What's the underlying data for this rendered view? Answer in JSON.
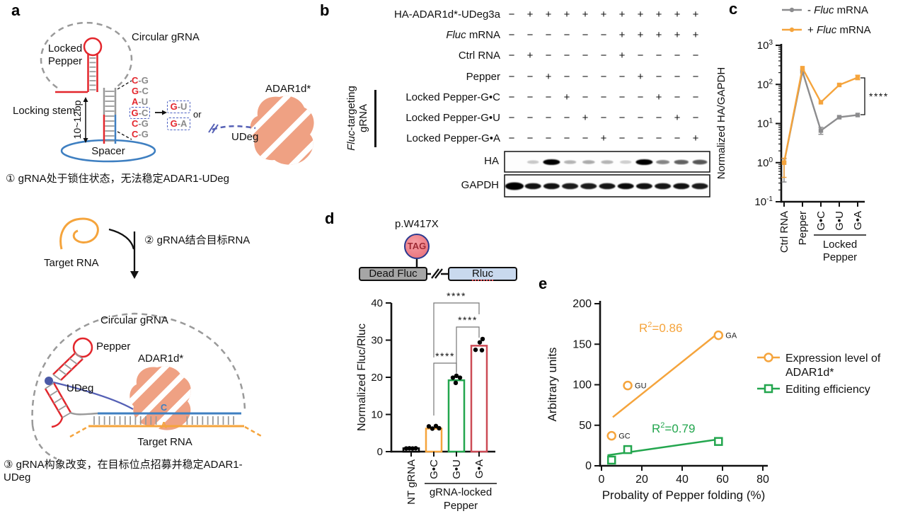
{
  "panels": {
    "a": "a",
    "b": "b",
    "c": "c",
    "d": "d",
    "e": "e"
  },
  "colors": {
    "orange": "#F5A43C",
    "green": "#23A64E",
    "red_bar": "#CC4A55",
    "gray_series": "#8C8C8E",
    "pepper_red": "#E3262C",
    "blue": "#3E7FC1",
    "udeg_blue": "#5560B5",
    "salmon": "#EFA183",
    "base_red": "#E3262C",
    "base_gray": "#8A8A8A"
  },
  "panel_a": {
    "top": {
      "circular_grna": "Circular gRNA",
      "locked_line1": "Locked",
      "locked_line2": "Pepper",
      "locking_stem": "Locking stem",
      "bp_range": "10~12bp",
      "spacer": "Spacer",
      "base_pairs": [
        {
          "l": "C",
          "r": "G",
          "boxed": false
        },
        {
          "l": "G",
          "r": "C",
          "boxed": false
        },
        {
          "l": "A",
          "r": "U",
          "boxed": false
        },
        {
          "l": "G",
          "r": "C",
          "boxed": true
        },
        {
          "l": "C",
          "r": "G",
          "boxed": false
        },
        {
          "l": "C",
          "r": "G",
          "boxed": false
        }
      ],
      "mutants": [
        {
          "l": "G",
          "r": "U"
        },
        {
          "l": "G",
          "r": "A"
        }
      ],
      "or_label": "or",
      "adar_label": "ADAR1d*",
      "udeg_label": "UDeg"
    },
    "step1": "① gRNA处于锁住状态，无法稳定ADAR1-UDeg",
    "target_rna": "Target RNA",
    "step2": "② gRNA结合目标RNA",
    "step3_line1": "③ gRNA构象改变，在目标位点招募并稳定ADAR1-",
    "step3_line2": "UDeg",
    "bottom": {
      "circular_grna": "Circular gRNA",
      "pepper": "Pepper",
      "adar": "ADAR1d*",
      "udeg": "UDeg",
      "c_base": "C",
      "a_base": "A",
      "target_rna": "Target RNA"
    }
  },
  "panel_b": {
    "rows": [
      {
        "label": "HA-ADAR1d*-UDeg3a",
        "symbols": [
          "−",
          "+",
          "+",
          "+",
          "+",
          "+",
          "+",
          "+",
          "+",
          "+",
          "+"
        ]
      },
      {
        "label_italic": "Fluc",
        "label_rest": " mRNA",
        "symbols": [
          "−",
          "−",
          "−",
          "−",
          "−",
          "−",
          "+",
          "+",
          "+",
          "+",
          "+"
        ]
      },
      {
        "label": "Ctrl RNA",
        "symbols": [
          "−",
          "+",
          "−",
          "−",
          "−",
          "−",
          "+",
          "−",
          "−",
          "−",
          "−"
        ]
      },
      {
        "label": "Pepper",
        "symbols": [
          "−",
          "−",
          "+",
          "−",
          "−",
          "−",
          "−",
          "+",
          "−",
          "−",
          "−"
        ]
      },
      {
        "label": "Locked Pepper-G•C",
        "symbols": [
          "−",
          "−",
          "−",
          "+",
          "−",
          "−",
          "−",
          "−",
          "+",
          "−",
          "−"
        ]
      },
      {
        "label": "Locked Pepper-G•U",
        "symbols": [
          "−",
          "−",
          "−",
          "−",
          "+",
          "−",
          "−",
          "−",
          "−",
          "+",
          "−"
        ]
      },
      {
        "label": "Locked Pepper-G•A",
        "symbols": [
          "−",
          "−",
          "−",
          "−",
          "−",
          "+",
          "−",
          "−",
          "−",
          "−",
          "+"
        ]
      }
    ],
    "bracket": {
      "line1_italic": "Fluc",
      "line1_rest": "-targeting",
      "line2": "gRNA"
    },
    "blots": [
      {
        "label": "HA",
        "bands": [
          0,
          0.07,
          1,
          0.16,
          0.2,
          0.16,
          0.04,
          1,
          0.38,
          0.55,
          0.6
        ]
      },
      {
        "label": "GAPDH",
        "bands": [
          1,
          0.92,
          0.92,
          0.88,
          0.88,
          0.9,
          0.95,
          0.92,
          0.9,
          0.92,
          0.88
        ]
      }
    ]
  },
  "panel_d_diagram": {
    "mutation": "p.W417X",
    "codon": "TAG",
    "left_box": "Dead Fluc",
    "right_box": "Rluc"
  },
  "chart_data": [
    {
      "id": "c",
      "type": "line",
      "y_scale": "log",
      "ylabel": "Normalized HA/GAPDH",
      "ylim_exponents": [
        -1,
        3
      ],
      "y_tick_exponents": [
        -1,
        0,
        1,
        2,
        3
      ],
      "categories": [
        "Ctrl RNA",
        "Pepper",
        "G•C",
        "G•U",
        "G•A"
      ],
      "group_label": {
        "line1": "Locked",
        "line2": "Pepper",
        "span_categories": [
          "G•C",
          "G•U",
          "G•A"
        ]
      },
      "legend_position": "top-right",
      "series": [
        {
          "name_pre": "- ",
          "name_italic": "Fluc",
          "name_post": " mRNA",
          "color": "#8C8C8E",
          "values": [
            1.0,
            215,
            6.6,
            14.5,
            16.5
          ],
          "err": [
            [
              0.32,
              1.25
            ],
            null,
            [
              5.3,
              8.0
            ],
            null,
            null
          ]
        },
        {
          "name_pre": "+ ",
          "name_italic": "Fluc",
          "name_post": " mRNA",
          "color": "#F5A43C",
          "values": [
            1.0,
            260,
            35,
            97,
            150
          ],
          "err": [
            [
              0.42,
              1.3
            ],
            null,
            null,
            null,
            [
              132,
              172
            ]
          ]
        }
      ],
      "significance": {
        "label": "****",
        "between": [
          "G•A - Fluc mRNA",
          "G•A + Fluc mRNA"
        ]
      }
    },
    {
      "id": "d",
      "type": "bar",
      "ylabel": "Normalized Fluc/Rluc",
      "ylim": [
        0,
        40
      ],
      "y_ticks": [
        0,
        10,
        20,
        30,
        40
      ],
      "categories": [
        "NT gRNA",
        "G•C",
        "G•U",
        "G•A"
      ],
      "group_label": {
        "line1": "gRNA-locked",
        "line2": "Pepper",
        "span_categories": [
          "G•C",
          "G•U",
          "G•A"
        ]
      },
      "values": [
        0.9,
        6.2,
        19.2,
        28.5
      ],
      "bar_colors": [
        "#000000",
        "#F5A43C",
        "#23A64E",
        "#CC4A55"
      ],
      "points": [
        [
          [
            -7,
            0.85
          ],
          [
            -2.5,
            0.9
          ],
          [
            2,
            0.85
          ],
          [
            6.5,
            0.9
          ]
        ],
        [
          [
            -7,
            6.8
          ],
          [
            -2,
            6.2
          ],
          [
            3,
            6.9
          ],
          [
            7.5,
            6.3
          ]
        ],
        [
          [
            -5,
            19.9
          ],
          [
            0,
            20.4
          ],
          [
            5,
            19.9
          ],
          [
            -1,
            18.5
          ]
        ],
        [
          [
            -5,
            27.4
          ],
          [
            4,
            27.3
          ],
          [
            1,
            29.4
          ],
          [
            5,
            30.3
          ]
        ]
      ],
      "significance": [
        {
          "pair": [
            "G•C",
            "G•U"
          ],
          "label": "****"
        },
        {
          "pair": [
            "G•U",
            "G•A"
          ],
          "label": "****"
        },
        {
          "pair": [
            "G•C",
            "G•A"
          ],
          "label": "****"
        }
      ]
    },
    {
      "id": "e",
      "type": "scatter",
      "xlabel": "Probality of Pepper folding (%)",
      "ylabel": "Arbitrary units",
      "xlim": [
        0,
        80
      ],
      "ylim": [
        0,
        200
      ],
      "x_ticks": [
        0,
        20,
        40,
        60,
        80
      ],
      "y_ticks": [
        0,
        50,
        100,
        150,
        200
      ],
      "series": [
        {
          "name_line1": "Expression level of",
          "name_line2": "ADAR1d*",
          "color": "#F5A43C",
          "marker": "circle",
          "points": [
            [
              5,
              37
            ],
            [
              13,
              99
            ],
            [
              58,
              161
            ]
          ],
          "point_labels": [
            "GC",
            "GU",
            "GA"
          ],
          "fit_line": {
            "x1": 5.6,
            "y1": 60,
            "x2": 57,
            "y2": 162
          },
          "r2": "0.86"
        },
        {
          "name_line1": "Editing efficiency",
          "name_line2": "",
          "color": "#23A64E",
          "marker": "square",
          "points": [
            [
              5,
              7
            ],
            [
              13,
              20
            ],
            [
              58,
              30
            ]
          ],
          "point_labels": [],
          "fit_line": {
            "x1": 3,
            "y1": 13,
            "x2": 59,
            "y2": 33
          },
          "r2": "0.79"
        }
      ]
    }
  ]
}
